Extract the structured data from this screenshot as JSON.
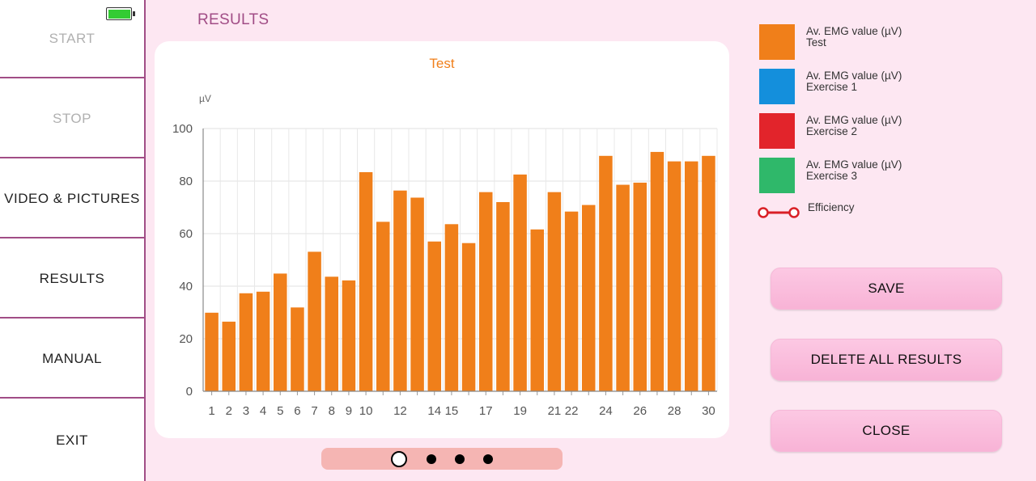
{
  "sidebar": {
    "items": [
      {
        "label": "START",
        "enabled": false
      },
      {
        "label": "STOP",
        "enabled": false
      },
      {
        "label": "VIDEO & PICTURES",
        "enabled": true
      },
      {
        "label": "RESULTS",
        "enabled": true
      },
      {
        "label": "MANUAL",
        "enabled": true
      },
      {
        "label": "EXIT",
        "enabled": true
      }
    ],
    "battery_level": 1.0
  },
  "page_title": "RESULTS",
  "legend": [
    {
      "line1": "Av. EMG value (µV)",
      "line2": "Test",
      "color": "#f07f1a"
    },
    {
      "line1": "Av. EMG value (µV)",
      "line2": "Exercise 1",
      "color": "#148fdc"
    },
    {
      "line1": "Av. EMG value (µV)",
      "line2": "Exercise 2",
      "color": "#e2242b"
    },
    {
      "line1": "Av. EMG value (µV)",
      "line2": "Exercise 3",
      "color": "#2fb86a"
    }
  ],
  "efficiency_label": "Efficiency",
  "efficiency_color": "#d92027",
  "buttons": {
    "save": "SAVE",
    "delete_all": "DELETE ALL RESULTS",
    "close": "CLOSE"
  },
  "pager": {
    "pages": 4,
    "active": 0
  },
  "chart_data": {
    "type": "bar",
    "title": "Test",
    "unit_label": "µV",
    "ylim": [
      0,
      100
    ],
    "yticks": [
      0,
      20,
      40,
      60,
      80,
      100
    ],
    "grid": true,
    "color": "#f07f1a",
    "x": [
      1,
      2,
      3,
      4,
      5,
      6,
      7,
      8,
      9,
      10,
      11,
      12,
      13,
      14,
      15,
      16,
      17,
      18,
      19,
      20,
      21,
      22,
      23,
      24,
      25,
      26,
      27,
      28,
      29,
      30
    ],
    "x_tick_labels": [
      "1",
      "2",
      "3",
      "4",
      "5",
      "6",
      "7",
      "8",
      "9",
      "10",
      "",
      "12",
      "",
      "14",
      "15",
      "",
      "17",
      "",
      "19",
      "",
      "21",
      "22",
      "",
      "24",
      "",
      "26",
      "",
      "28",
      "",
      "30"
    ],
    "values": [
      29.9,
      26.5,
      37.3,
      37.9,
      44.8,
      31.9,
      53.1,
      43.6,
      42.2,
      83.4,
      64.5,
      76.4,
      73.7,
      57.0,
      63.6,
      56.4,
      75.8,
      72.0,
      82.5,
      61.6,
      75.8,
      68.4,
      70.9,
      89.6,
      78.6,
      79.4,
      91.1,
      87.5,
      87.5,
      89.6
    ]
  }
}
